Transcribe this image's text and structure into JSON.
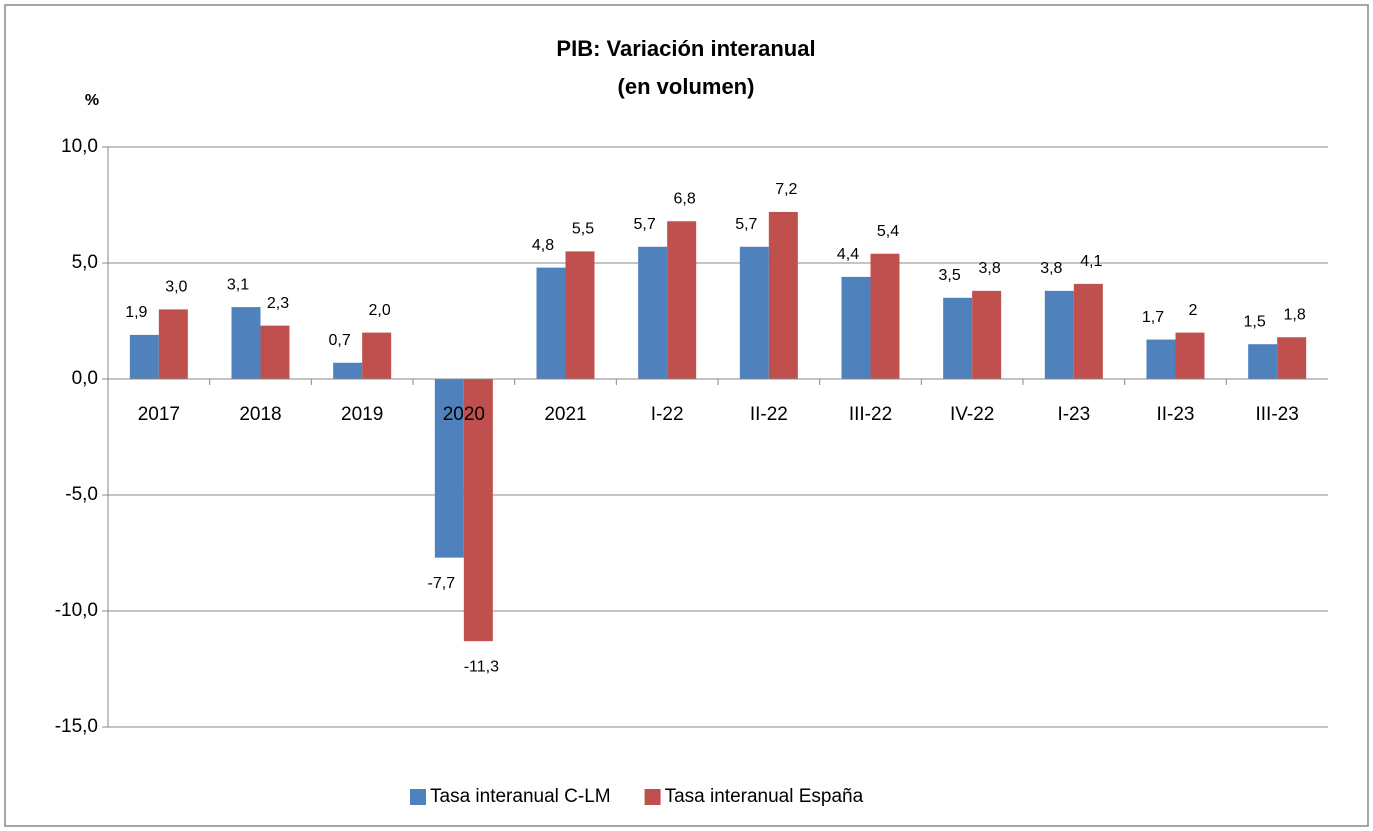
{
  "chart_data": {
    "type": "bar",
    "title": "PIB: Variación interanual",
    "subtitle": "(en volumen)",
    "y_label": "%",
    "categories": [
      "2017",
      "2018",
      "2019",
      "2020",
      "2021",
      "I-22",
      "II-22",
      "III-22",
      "IV-22",
      "I-23",
      "II-23",
      "III-23"
    ],
    "series": [
      {
        "name": "Tasa interanual C-LM",
        "color": "#4f81bd",
        "values": [
          1.9,
          3.1,
          0.7,
          -7.7,
          4.8,
          5.7,
          5.7,
          4.4,
          3.5,
          3.8,
          1.7,
          1.5
        ],
        "value_labels": [
          "1,9",
          "3,1",
          "0,7",
          "-7,7",
          "4,8",
          "5,7",
          "5,7",
          "4,4",
          "3,5",
          "3,8",
          "1,7",
          "1,5"
        ]
      },
      {
        "name": "Tasa interanual España",
        "color": "#c0504d",
        "values": [
          3.0,
          2.3,
          2.0,
          -11.3,
          5.5,
          6.8,
          7.2,
          5.4,
          3.8,
          4.1,
          2,
          1.8
        ],
        "value_labels": [
          "3,0",
          "2,3",
          "2,0",
          "-11,3",
          "5,5",
          "6,8",
          "7,2",
          "5,4",
          "3,8",
          "4,1",
          "2",
          "1,8"
        ]
      }
    ],
    "ylim": [
      -15,
      10
    ],
    "yticks": [
      {
        "value": -15,
        "label": "-15,0"
      },
      {
        "value": -10,
        "label": "-10,0"
      },
      {
        "value": -5,
        "label": "-5,0"
      },
      {
        "value": 0,
        "label": "0,0"
      },
      {
        "value": 5,
        "label": "5,0"
      },
      {
        "value": 10,
        "label": "10,0"
      }
    ],
    "grid": true,
    "legend": "bottom"
  }
}
